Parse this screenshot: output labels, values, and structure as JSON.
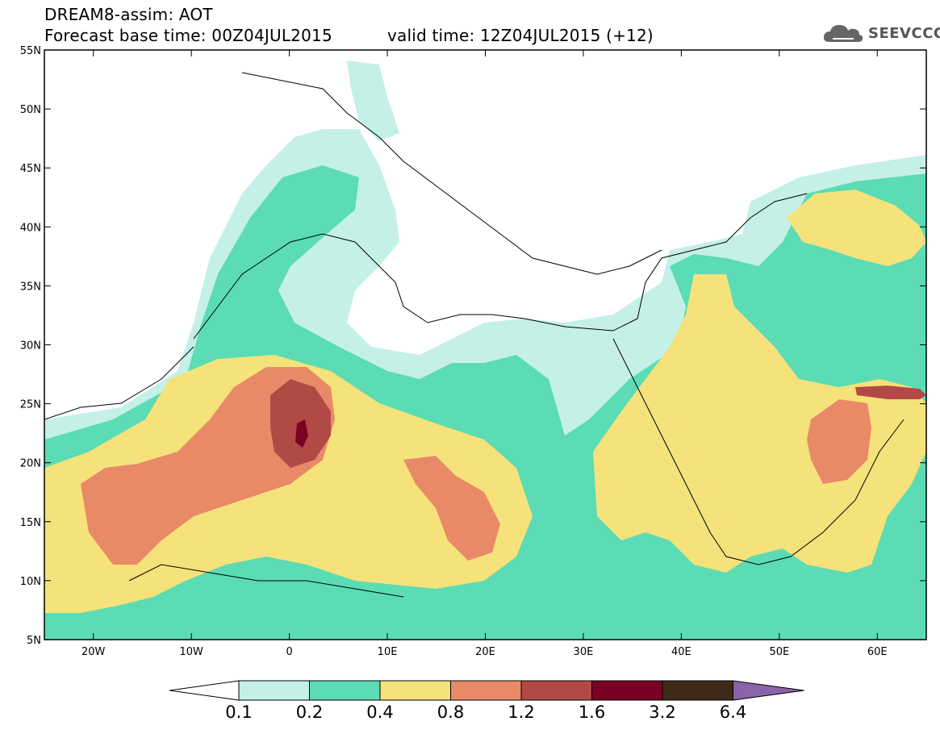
{
  "header": {
    "title": "DREAM8-assim: AOT",
    "base_time": "Forecast base time: 00Z04JUL2015",
    "valid_time": "valid time: 12Z04JUL2015 (+12)",
    "logo_text": "SEEVCCC",
    "logo_icon": "cloud-logo-icon"
  },
  "map": {
    "lon_range": [
      -25,
      65
    ],
    "lat_range": [
      5,
      55
    ],
    "lon_labels": [
      "20W",
      "10W",
      "0",
      "10E",
      "20E",
      "30E",
      "40E",
      "50E",
      "60E"
    ],
    "lat_labels": [
      "55N",
      "50N",
      "45N",
      "40N",
      "35N",
      "30N",
      "25N",
      "20N",
      "15N",
      "10N",
      "5N"
    ]
  },
  "colorbar": {
    "colors": [
      "#c4f0e8",
      "#5bdcb4",
      "#f6e27a",
      "#e88a68",
      "#b14a45",
      "#7a0024",
      "#3f2a1a",
      "#8a64a8"
    ],
    "labels": [
      "0.1",
      "0.2",
      "0.4",
      "0.8",
      "1.2",
      "1.6",
      "3.2",
      "6.4"
    ]
  }
}
